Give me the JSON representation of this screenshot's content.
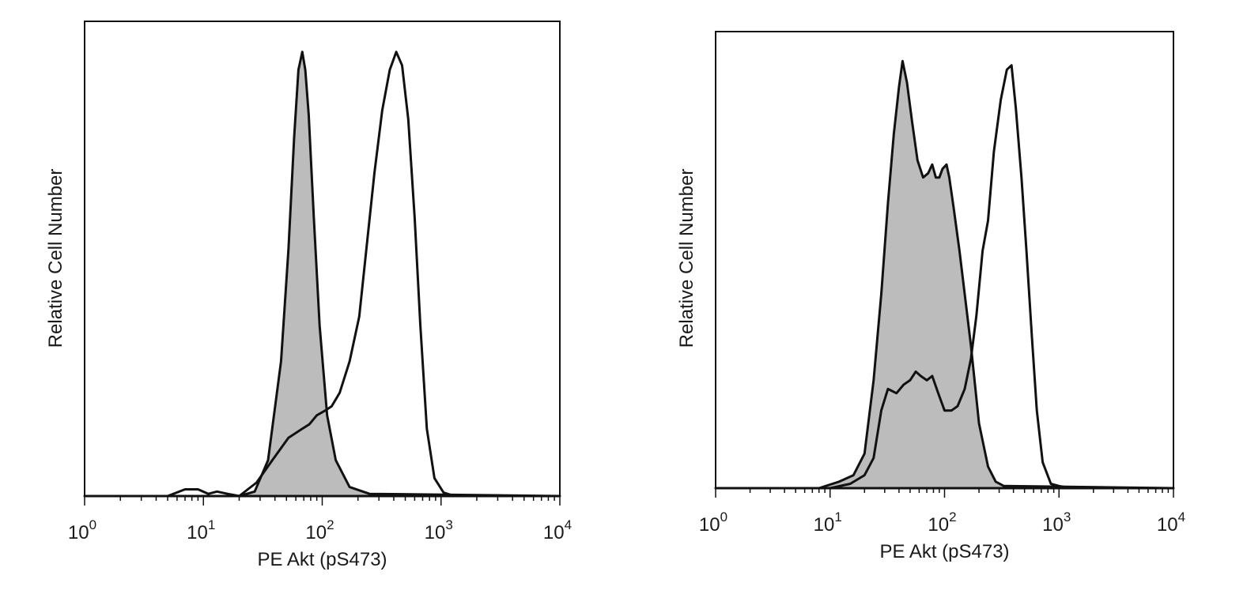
{
  "chart_data": [
    {
      "type": "area",
      "xlabel": "PE Akt (pS473)",
      "ylabel": "Relative Cell Number",
      "x_scale": "log",
      "xlim": [
        1,
        10000
      ],
      "ylim": [
        0,
        100
      ],
      "xticks": [
        {
          "base": "10",
          "exp": "0"
        },
        {
          "base": "10",
          "exp": "1"
        },
        {
          "base": "10",
          "exp": "2"
        },
        {
          "base": "10",
          "exp": "3"
        },
        {
          "base": "10",
          "exp": "4"
        }
      ],
      "grid": false,
      "series": [
        {
          "style": "filled",
          "fill": "#bcbcbc",
          "stroke": "#111111",
          "points": [
            [
              1,
              0
            ],
            [
              20,
              0
            ],
            [
              27,
              1
            ],
            [
              35,
              8
            ],
            [
              45,
              30
            ],
            [
              52,
              55
            ],
            [
              58,
              80
            ],
            [
              63,
              95
            ],
            [
              68,
              99
            ],
            [
              72,
              95
            ],
            [
              77,
              85
            ],
            [
              85,
              62
            ],
            [
              95,
              38
            ],
            [
              110,
              18
            ],
            [
              130,
              8
            ],
            [
              170,
              2
            ],
            [
              250,
              0.5
            ],
            [
              10000,
              0
            ]
          ]
        },
        {
          "style": "outline",
          "stroke": "#111111",
          "points": [
            [
              1,
              0
            ],
            [
              5,
              0
            ],
            [
              7,
              1.5
            ],
            [
              9,
              1.5
            ],
            [
              11,
              0.5
            ],
            [
              13,
              1
            ],
            [
              16,
              0.5
            ],
            [
              20,
              0
            ],
            [
              28,
              3
            ],
            [
              38,
              8
            ],
            [
              52,
              13
            ],
            [
              68,
              15
            ],
            [
              78,
              16
            ],
            [
              90,
              18
            ],
            [
              105,
              19
            ],
            [
              120,
              20
            ],
            [
              140,
              23
            ],
            [
              170,
              30
            ],
            [
              205,
              40
            ],
            [
              235,
              55
            ],
            [
              275,
              72
            ],
            [
              320,
              86
            ],
            [
              370,
              95
            ],
            [
              420,
              99
            ],
            [
              470,
              96
            ],
            [
              530,
              84
            ],
            [
              600,
              62
            ],
            [
              670,
              38
            ],
            [
              760,
              15
            ],
            [
              880,
              4
            ],
            [
              1050,
              0.8
            ],
            [
              1300,
              0
            ],
            [
              10000,
              0
            ]
          ]
        }
      ]
    },
    {
      "type": "area",
      "xlabel": "PE Akt (pS473)",
      "ylabel": "Relative Cell Number",
      "x_scale": "log",
      "xlim": [
        1,
        10000
      ],
      "ylim": [
        0,
        100
      ],
      "xticks": [
        {
          "base": "10",
          "exp": "0"
        },
        {
          "base": "10",
          "exp": "1"
        },
        {
          "base": "10",
          "exp": "2"
        },
        {
          "base": "10",
          "exp": "3"
        },
        {
          "base": "10",
          "exp": "4"
        }
      ],
      "grid": false,
      "series": [
        {
          "style": "filled",
          "fill": "#bcbcbc",
          "stroke": "#111111",
          "points": [
            [
              1,
              0
            ],
            [
              8,
              0
            ],
            [
              12,
              1.5
            ],
            [
              16,
              3
            ],
            [
              20,
              8
            ],
            [
              24,
              25
            ],
            [
              28,
              45
            ],
            [
              32,
              66
            ],
            [
              36,
              82
            ],
            [
              40,
              93
            ],
            [
              43,
              99
            ],
            [
              47,
              94
            ],
            [
              52,
              85
            ],
            [
              58,
              76
            ],
            [
              65,
              72
            ],
            [
              72,
              73
            ],
            [
              78,
              75
            ],
            [
              84,
              72
            ],
            [
              90,
              72
            ],
            [
              96,
              74
            ],
            [
              104,
              75
            ],
            [
              110,
              72
            ],
            [
              120,
              65
            ],
            [
              135,
              55
            ],
            [
              150,
              45
            ],
            [
              170,
              33
            ],
            [
              200,
              15
            ],
            [
              240,
              5
            ],
            [
              280,
              1.5
            ],
            [
              330,
              0.5
            ],
            [
              10000,
              0
            ]
          ]
        },
        {
          "style": "outline",
          "stroke": "#111111",
          "points": [
            [
              1,
              0
            ],
            [
              10,
              0
            ],
            [
              15,
              1
            ],
            [
              20,
              3
            ],
            [
              24,
              7
            ],
            [
              28,
              18
            ],
            [
              32,
              23
            ],
            [
              38,
              22
            ],
            [
              44,
              24
            ],
            [
              50,
              25
            ],
            [
              56,
              27
            ],
            [
              62,
              26
            ],
            [
              70,
              25
            ],
            [
              78,
              26
            ],
            [
              88,
              22
            ],
            [
              100,
              18
            ],
            [
              115,
              18
            ],
            [
              130,
              19
            ],
            [
              150,
              23
            ],
            [
              170,
              30
            ],
            [
              190,
              40
            ],
            [
              215,
              55
            ],
            [
              240,
              62
            ],
            [
              270,
              78
            ],
            [
              310,
              90
            ],
            [
              350,
              97
            ],
            [
              385,
              98
            ],
            [
              420,
              88
            ],
            [
              470,
              72
            ],
            [
              520,
              55
            ],
            [
              580,
              35
            ],
            [
              640,
              18
            ],
            [
              720,
              6
            ],
            [
              850,
              1
            ],
            [
              1000,
              0.5
            ],
            [
              1300,
              0
            ],
            [
              10000,
              0
            ]
          ]
        }
      ]
    }
  ]
}
